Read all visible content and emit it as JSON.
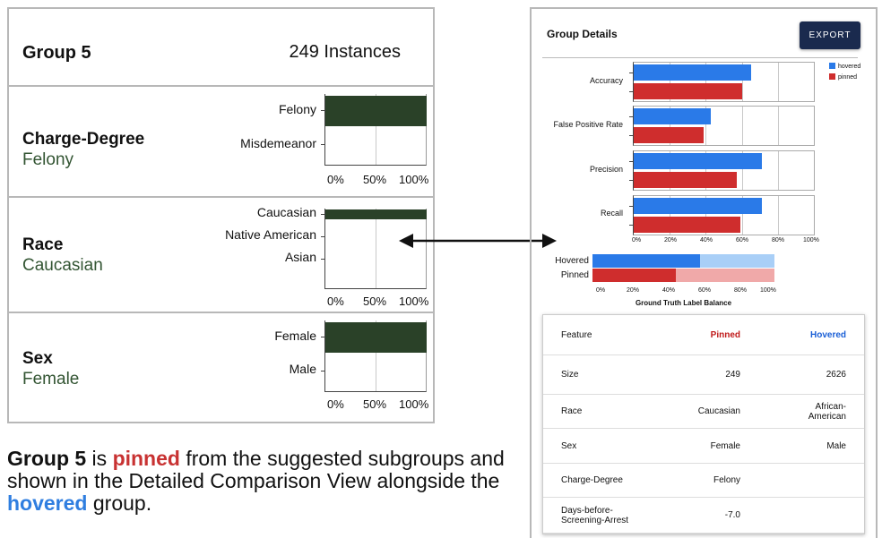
{
  "left_panel": {
    "group_title": "Group 5",
    "instances": "249 Instances",
    "features": [
      {
        "name": "Charge-Degree",
        "value": "Felony",
        "categories": [
          {
            "label": "Felony",
            "fraction": 1.0
          },
          {
            "label": "Misdemeanor",
            "fraction": 0.0
          }
        ]
      },
      {
        "name": "Race",
        "value": "Caucasian",
        "categories": [
          {
            "label": "Caucasian",
            "fraction": 1.0
          },
          {
            "label": "Native American",
            "fraction": 0.0
          },
          {
            "label": "Asian",
            "fraction": 0.0
          }
        ]
      },
      {
        "name": "Sex",
        "value": "Female",
        "categories": [
          {
            "label": "Female",
            "fraction": 1.0
          },
          {
            "label": "Male",
            "fraction": 0.0
          }
        ]
      }
    ],
    "axis_ticks": [
      "0%",
      "50%",
      "100%"
    ]
  },
  "caption": {
    "group": "Group 5",
    "is": " is ",
    "pinned": "pinned",
    "middle": " from the suggested subgroups and shown in the Detailed Comparison View alongside the ",
    "hovered": "hovered",
    "end": " group."
  },
  "right_panel": {
    "title": "Group Details",
    "export_label": "EXPORT",
    "legend": [
      {
        "name": "hovered",
        "color": "#2a7ae8"
      },
      {
        "name": "pinned",
        "color": "#cf2d2d"
      }
    ],
    "metrics": [
      {
        "label": "Accuracy",
        "hovered": 0.65,
        "pinned": 0.6
      },
      {
        "label": "False Positive Rate",
        "hovered": 0.43,
        "pinned": 0.39
      },
      {
        "label": "Precision",
        "hovered": 0.71,
        "pinned": 0.57
      },
      {
        "label": "Recall",
        "hovered": 0.71,
        "pinned": 0.59
      }
    ],
    "metric_ticks": [
      "0%",
      "20%",
      "40%",
      "60%",
      "80%",
      "100%"
    ],
    "ground_truth": {
      "labels": {
        "hovered": "Hovered",
        "pinned": "Pinned"
      },
      "hovered": 0.59,
      "pinned": 0.46,
      "axis_title": "Ground Truth Label Balance",
      "ticks": [
        "0%",
        "20%",
        "40%",
        "60%",
        "80%",
        "100%"
      ]
    },
    "table": {
      "headers": {
        "feature": "Feature",
        "pinned": "Pinned",
        "hovered": "Hovered"
      },
      "rows": [
        {
          "feature": "Size",
          "pinned": "249",
          "hovered": "2626"
        },
        {
          "feature": "Race",
          "pinned": "Caucasian",
          "hovered": "African-American"
        },
        {
          "feature": "Sex",
          "pinned": "Female",
          "hovered": "Male"
        },
        {
          "feature": "Charge-Degree",
          "pinned": "Felony",
          "hovered": ""
        },
        {
          "feature": "Days-before-Screening-Arrest",
          "pinned": "-7.0",
          "hovered": ""
        }
      ]
    }
  }
}
